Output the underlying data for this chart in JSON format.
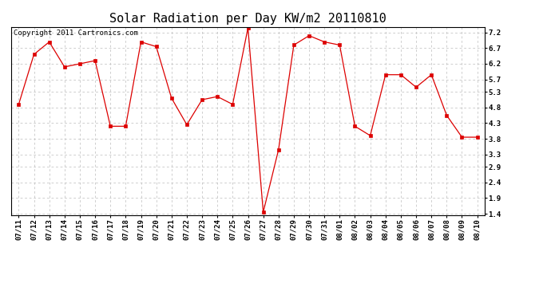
{
  "title": "Solar Radiation per Day KW/m2 20110810",
  "copyright_text": "Copyright 2011 Cartronics.com",
  "dates": [
    "07/11",
    "07/12",
    "07/13",
    "07/14",
    "07/15",
    "07/16",
    "07/17",
    "07/18",
    "07/19",
    "07/20",
    "07/21",
    "07/22",
    "07/23",
    "07/24",
    "07/25",
    "07/26",
    "07/27",
    "07/28",
    "07/29",
    "07/30",
    "07/31",
    "08/01",
    "08/02",
    "08/03",
    "08/04",
    "08/05",
    "08/06",
    "08/07",
    "08/08",
    "08/09",
    "08/10"
  ],
  "values": [
    4.9,
    6.5,
    6.9,
    6.1,
    6.2,
    6.3,
    4.2,
    4.2,
    6.9,
    6.75,
    5.1,
    4.25,
    5.05,
    5.15,
    4.9,
    7.35,
    1.45,
    3.45,
    6.8,
    7.1,
    6.9,
    6.8,
    4.2,
    3.9,
    5.85,
    5.85,
    5.45,
    5.85,
    4.55,
    3.85,
    3.85
  ],
  "line_color": "#dd0000",
  "marker": "s",
  "marker_size": 2.5,
  "marker_color": "#dd0000",
  "background_color": "#ffffff",
  "grid_color": "#bbbbbb",
  "yticks": [
    1.4,
    1.9,
    2.4,
    2.9,
    3.3,
    3.8,
    4.3,
    4.8,
    5.3,
    5.7,
    6.2,
    6.7,
    7.2
  ],
  "ymin": 1.35,
  "ymax": 7.38,
  "title_fontsize": 11,
  "copyright_fontsize": 6.5,
  "tick_fontsize": 6.5
}
